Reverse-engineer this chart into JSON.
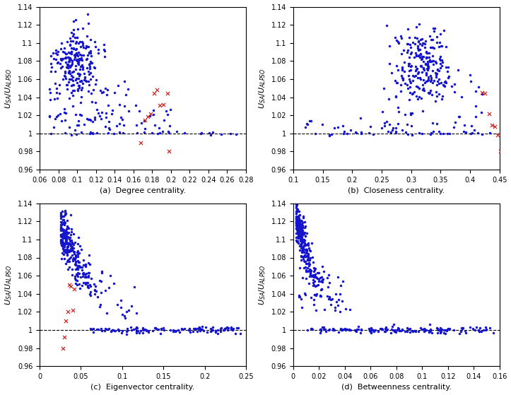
{
  "subplots": [
    {
      "label": "(a)  Degree centrality.",
      "xlim": [
        0.06,
        0.28
      ],
      "xticks": [
        0.06,
        0.08,
        0.1,
        0.12,
        0.14,
        0.16,
        0.18,
        0.2,
        0.22,
        0.24,
        0.26,
        0.28
      ],
      "ylim": [
        0.96,
        1.14
      ],
      "yticks": [
        0.96,
        0.98,
        1.0,
        1.02,
        1.04,
        1.06,
        1.08,
        1.1,
        1.12,
        1.14
      ],
      "red_x": [
        0.168,
        0.172,
        0.175,
        0.178,
        0.182,
        0.185,
        0.188,
        0.192,
        0.196,
        0.198
      ],
      "red_y": [
        0.9895,
        1.015,
        1.019,
        1.022,
        1.044,
        1.048,
        1.031,
        1.032,
        1.044,
        0.9804
      ]
    },
    {
      "label": "(b)  Closeness centrality.",
      "xlim": [
        0.1,
        0.45
      ],
      "xticks": [
        0.1,
        0.15,
        0.2,
        0.25,
        0.3,
        0.35,
        0.4,
        0.45
      ],
      "ylim": [
        0.96,
        1.14
      ],
      "yticks": [
        0.96,
        0.98,
        1.0,
        1.02,
        1.04,
        1.06,
        1.08,
        1.1,
        1.12,
        1.14
      ],
      "red_x": [
        0.42,
        0.425,
        0.432,
        0.437,
        0.442,
        0.447,
        0.452
      ],
      "red_y": [
        1.045,
        1.044,
        1.022,
        1.009,
        1.008,
        0.998,
        0.98
      ]
    },
    {
      "label": "(c)  Eigenvector centrality.",
      "xlim": [
        0.0,
        0.25
      ],
      "xticks": [
        0.0,
        0.05,
        0.1,
        0.15,
        0.2,
        0.25
      ],
      "ylim": [
        0.96,
        1.14
      ],
      "yticks": [
        0.96,
        0.98,
        1.0,
        1.02,
        1.04,
        1.06,
        1.08,
        1.1,
        1.12,
        1.14
      ],
      "red_x": [
        0.028,
        0.03,
        0.032,
        0.034,
        0.036,
        0.038,
        0.04,
        0.042
      ],
      "red_y": [
        0.98,
        0.992,
        1.01,
        1.02,
        1.05,
        1.048,
        1.022,
        1.045
      ]
    },
    {
      "label": "(d)  Betweenness centrality.",
      "xlim": [
        0.0,
        0.16
      ],
      "xticks": [
        0.0,
        0.02,
        0.04,
        0.06,
        0.08,
        0.1,
        0.12,
        0.14,
        0.16
      ],
      "ylim": [
        0.96,
        1.14
      ],
      "yticks": [
        0.96,
        0.98,
        1.0,
        1.02,
        1.04,
        1.06,
        1.08,
        1.1,
        1.12,
        1.14
      ],
      "red_x": [],
      "red_y": []
    }
  ],
  "blue_color": "#1414cc",
  "red_color": "#cc1414",
  "marker_size": 2.5,
  "dpi": 100,
  "figsize": [
    7.23,
    5.59
  ]
}
